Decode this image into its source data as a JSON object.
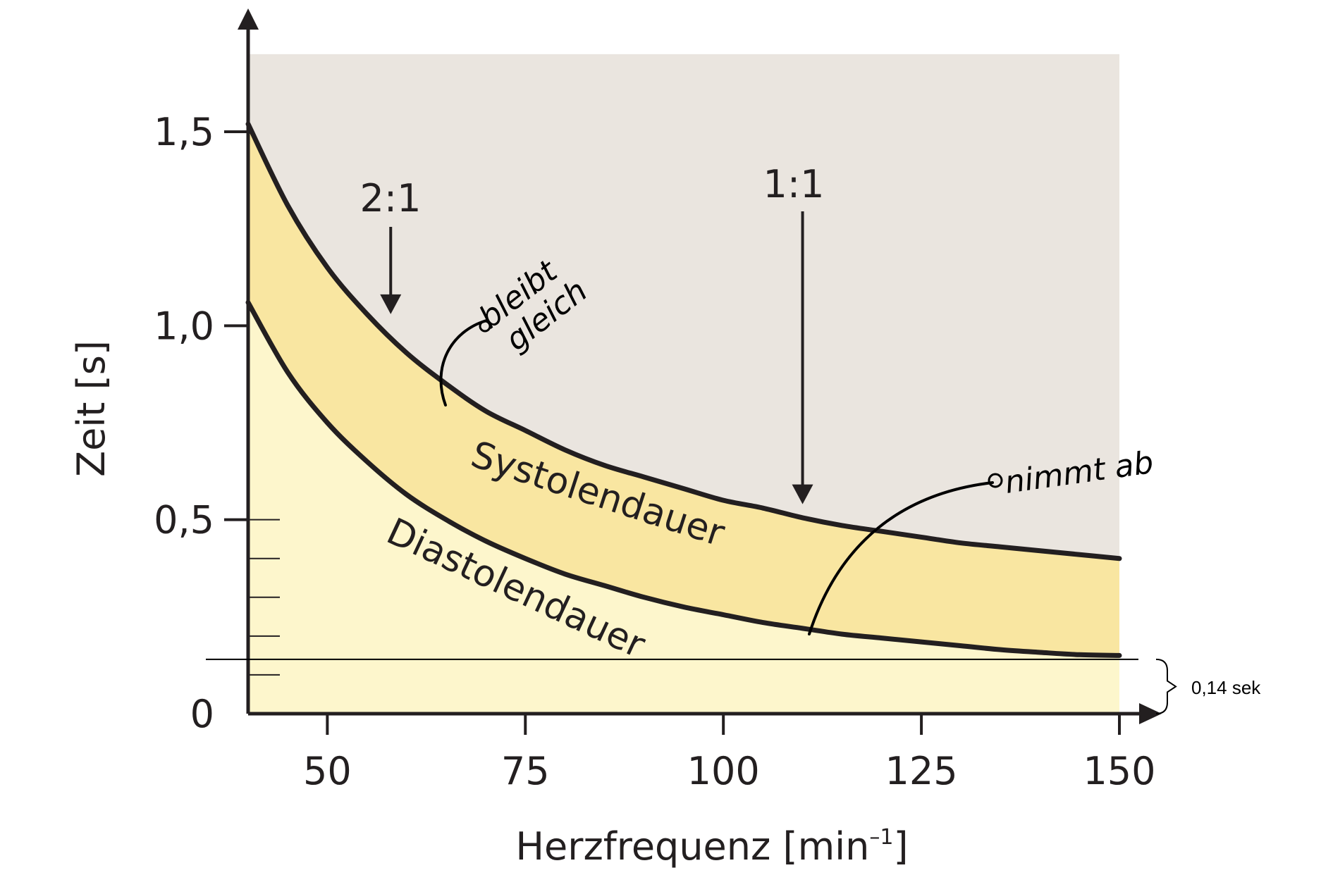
{
  "chart_data": {
    "type": "area",
    "title": "",
    "xlabel": "Herzfrequenz [min",
    "xlabel_sup": "–1",
    "xlabel_end": "]",
    "ylabel": "Zeit [s]",
    "xlim": [
      40,
      150
    ],
    "ylim": [
      0,
      1.7
    ],
    "x_ticks": [
      50,
      75,
      100,
      125,
      150
    ],
    "x_tick_labels": [
      "50",
      "75",
      "100",
      "125",
      "150"
    ],
    "y_ticks": [
      0,
      0.5,
      1.0,
      1.5
    ],
    "y_tick_labels": [
      "0",
      "0,5",
      "1,0",
      "1,5"
    ],
    "y_minor_ticks": [
      0.1,
      0.2,
      0.3,
      0.4
    ],
    "grid": false,
    "x": [
      40,
      45,
      50,
      55,
      60,
      65,
      70,
      75,
      80,
      85,
      90,
      95,
      100,
      105,
      110,
      115,
      120,
      125,
      130,
      135,
      140,
      145,
      150
    ],
    "series": [
      {
        "name": "Systolendauer",
        "values": [
          1.52,
          1.31,
          1.15,
          1.03,
          0.93,
          0.85,
          0.78,
          0.73,
          0.68,
          0.64,
          0.61,
          0.58,
          0.55,
          0.53,
          0.505,
          0.485,
          0.47,
          0.455,
          0.44,
          0.43,
          0.42,
          0.41,
          0.4
        ],
        "color": "#f9e6a1"
      },
      {
        "name": "Diastolendauer",
        "values": [
          1.06,
          0.88,
          0.75,
          0.65,
          0.565,
          0.5,
          0.445,
          0.4,
          0.36,
          0.33,
          0.3,
          0.275,
          0.255,
          0.235,
          0.22,
          0.205,
          0.195,
          0.185,
          0.175,
          0.165,
          0.158,
          0.152,
          0.15
        ],
        "color": "#fdf6cc"
      }
    ],
    "annotations": [
      {
        "text": "2:1",
        "x": 58,
        "arrow_to_y": 1.03
      },
      {
        "text": "1:1",
        "x": 110,
        "arrow_to_y": 0.54
      },
      {
        "text": "bleibt\ngleich",
        "handwritten": true
      },
      {
        "text": "nimmt ab",
        "handwritten": true
      },
      {
        "text": "0,14 sek",
        "y": 0.14
      }
    ],
    "colors": {
      "background": "#eae5df",
      "systole_band": "#f9e6a1",
      "diastole_band": "#fdf6cc",
      "curve": "#231f20"
    }
  }
}
